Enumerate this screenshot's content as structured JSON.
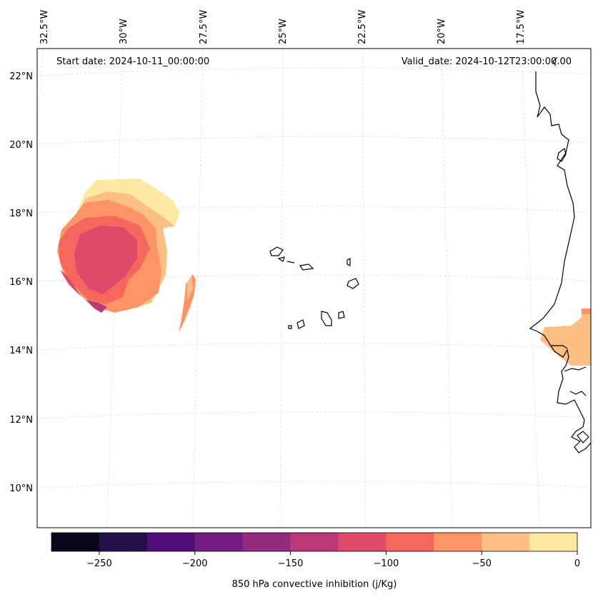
{
  "map": {
    "start_date": "Start date: 2024-10-11_00:00:00",
    "valid_date": "Valid_date: 2024-10-12T23:00:00.00",
    "lon_labels": [
      "32.5°W",
      "30°W",
      "27.5°W",
      "25°W",
      "22.5°W",
      "20°W",
      "17.5°W"
    ],
    "lat_labels": [
      "22°N",
      "20°N",
      "18°N",
      "16°N",
      "14°N",
      "12°N",
      "10°N"
    ]
  },
  "colorbar": {
    "label": "850 hPa convective inhibition (j/Kg)",
    "ticks": [
      "−250",
      "−200",
      "−150",
      "−100",
      "−50",
      "0"
    ],
    "bins": [
      {
        "range": "-275 to -250",
        "color": "#07061b"
      },
      {
        "range": "-250 to -225",
        "color": "#221149"
      },
      {
        "range": "-225 to -200",
        "color": "#4f0d78"
      },
      {
        "range": "-200 to -175",
        "color": "#741d81"
      },
      {
        "range": "-175 to -150",
        "color": "#952b7c"
      },
      {
        "range": "-150 to -125",
        "color": "#ba3878"
      },
      {
        "range": "-125 to -100",
        "color": "#dd4a6b"
      },
      {
        "range": "-100 to -75",
        "color": "#f3675c"
      },
      {
        "range": "-75 to -50",
        "color": "#fd9466"
      },
      {
        "range": "-50 to -25",
        "color": "#febf84"
      },
      {
        "range": "-25 to 0",
        "color": "#fde9a4"
      }
    ]
  }
}
